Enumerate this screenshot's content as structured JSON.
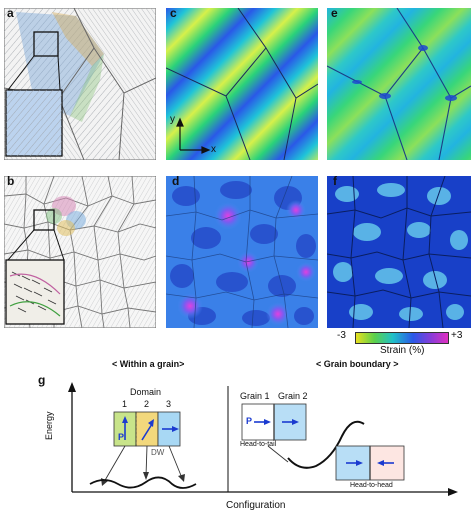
{
  "panel_labels": {
    "a": "a",
    "b": "b",
    "c": "c",
    "d": "d",
    "e": "e",
    "f": "f",
    "g": "g"
  },
  "axes": {
    "y": "y",
    "x": "x"
  },
  "colorbar": {
    "min_label": "-3",
    "max_label": "+3",
    "title": "Strain (%)",
    "min": -3,
    "max": 3
  },
  "g": {
    "within_title": "< Within a grain>",
    "boundary_title": "< Grain boundary >",
    "domain_label": "Domain",
    "domain_numbers": [
      "1",
      "2",
      "3"
    ],
    "p_label": "P",
    "dw_label": "DW",
    "grain1": "Grain 1",
    "grain2": "Grain 2",
    "head_to_tail": "Head-to-tail",
    "head_to_head": "Head-to-head",
    "y_axis": "Energy",
    "x_axis": "Configuration"
  }
}
